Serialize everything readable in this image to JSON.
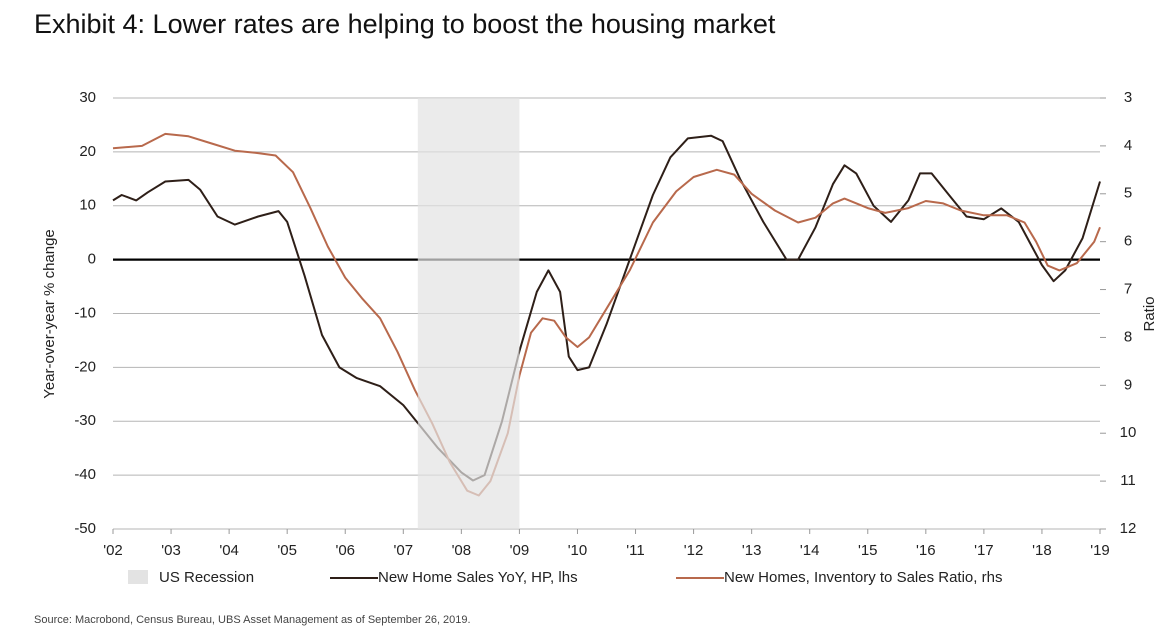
{
  "chart_data": {
    "type": "line",
    "title": "Exhibit 4: Lower rates are helping to boost the housing market",
    "ylabel": "Year-over-year % change",
    "y2label": "Ratio",
    "source": "Source: Macrobond, Census Bureau, UBS Asset Management as of September 26, 2019.",
    "xlim": [
      2002,
      2019
    ],
    "xticks": [
      {
        "value": 2002,
        "label": "'02"
      },
      {
        "value": 2003,
        "label": "'03"
      },
      {
        "value": 2004,
        "label": "'04"
      },
      {
        "value": 2005,
        "label": "'05"
      },
      {
        "value": 2006,
        "label": "'06"
      },
      {
        "value": 2007,
        "label": "'07"
      },
      {
        "value": 2008,
        "label": "'08"
      },
      {
        "value": 2009,
        "label": "'09"
      },
      {
        "value": 2010,
        "label": "'10"
      },
      {
        "value": 2011,
        "label": "'11"
      },
      {
        "value": 2012,
        "label": "'12"
      },
      {
        "value": 2013,
        "label": "'13"
      },
      {
        "value": 2014,
        "label": "'14"
      },
      {
        "value": 2015,
        "label": "'15"
      },
      {
        "value": 2016,
        "label": "'16"
      },
      {
        "value": 2017,
        "label": "'17"
      },
      {
        "value": 2018,
        "label": "'18"
      },
      {
        "value": 2019,
        "label": "'19"
      }
    ],
    "ylim": [
      -50,
      30
    ],
    "yticks": [
      -50,
      -40,
      -30,
      -20,
      -10,
      0,
      10,
      20,
      30
    ],
    "y2lim": [
      12,
      3
    ],
    "y2ticks": [
      3,
      4,
      5,
      6,
      7,
      8,
      9,
      10,
      11,
      12
    ],
    "grid": true,
    "recession": {
      "name": "US Recession",
      "color": "#e3e3e3",
      "range": [
        2007.25,
        2009.0
      ]
    },
    "series": [
      {
        "name": "New Home Sales YoY, HP, lhs",
        "color": "#2e1f18",
        "x": [
          2002.0,
          2002.15,
          2002.4,
          2002.6,
          2002.9,
          2003.3,
          2003.5,
          2003.8,
          2004.1,
          2004.5,
          2004.85,
          2005.0,
          2005.3,
          2005.6,
          2005.9,
          2006.2,
          2006.6,
          2007.0,
          2007.3,
          2007.6,
          2008.0,
          2008.2,
          2008.4,
          2008.7,
          2009.0,
          2009.3,
          2009.5,
          2009.7,
          2009.85,
          2010.0,
          2010.2,
          2010.5,
          2010.9,
          2011.3,
          2011.6,
          2011.9,
          2012.3,
          2012.5,
          2012.8,
          2013.2,
          2013.6,
          2013.8,
          2014.1,
          2014.4,
          2014.6,
          2014.8,
          2015.1,
          2015.4,
          2015.7,
          2015.9,
          2016.1,
          2016.4,
          2016.7,
          2017.0,
          2017.3,
          2017.6,
          2017.8,
          2018.0,
          2018.2,
          2018.4,
          2018.7,
          2019.0
        ],
        "values": [
          11,
          12,
          11,
          12.5,
          14.5,
          14.8,
          13,
          8,
          6.5,
          8,
          9,
          7,
          -3,
          -14,
          -20,
          -22,
          -23.5,
          -27,
          -31,
          -35,
          -39.5,
          -41,
          -40,
          -30,
          -17,
          -6,
          -2,
          -6,
          -18,
          -20.5,
          -20,
          -12,
          0,
          12,
          19,
          22.5,
          23,
          22,
          15,
          7,
          0,
          0,
          6,
          14,
          17.5,
          16,
          10,
          7,
          11,
          16,
          16,
          12,
          8,
          7.5,
          9.5,
          7,
          3,
          -1,
          -4,
          -2,
          4,
          14.5
        ]
      },
      {
        "name": "New Homes, Inventory to Sales Ratio, rhs",
        "color": "#b8694c",
        "axis": "y2",
        "x": [
          2002.0,
          2002.5,
          2002.9,
          2003.3,
          2003.7,
          2004.1,
          2004.5,
          2004.8,
          2005.1,
          2005.4,
          2005.7,
          2006.0,
          2006.3,
          2006.6,
          2006.9,
          2007.2,
          2007.5,
          2007.8,
          2008.1,
          2008.3,
          2008.5,
          2008.8,
          2009.0,
          2009.2,
          2009.4,
          2009.6,
          2009.8,
          2010.0,
          2010.2,
          2010.5,
          2010.9,
          2011.3,
          2011.7,
          2012.0,
          2012.4,
          2012.7,
          2013.0,
          2013.4,
          2013.8,
          2014.1,
          2014.4,
          2014.6,
          2015.0,
          2015.3,
          2015.7,
          2016.0,
          2016.3,
          2016.6,
          2017.0,
          2017.4,
          2017.7,
          2017.9,
          2018.1,
          2018.3,
          2018.6,
          2018.9,
          2019.0
        ],
        "values": [
          4.05,
          4.0,
          3.75,
          3.8,
          3.95,
          4.1,
          4.15,
          4.2,
          4.55,
          5.3,
          6.1,
          6.75,
          7.2,
          7.6,
          8.3,
          9.1,
          9.8,
          10.6,
          11.2,
          11.3,
          11.0,
          10.0,
          8.8,
          7.9,
          7.6,
          7.65,
          8.0,
          8.2,
          8.0,
          7.4,
          6.6,
          5.6,
          4.95,
          4.65,
          4.5,
          4.6,
          5.0,
          5.35,
          5.6,
          5.5,
          5.2,
          5.1,
          5.3,
          5.4,
          5.3,
          5.15,
          5.2,
          5.35,
          5.45,
          5.45,
          5.6,
          6.0,
          6.5,
          6.6,
          6.45,
          6.0,
          5.7
        ]
      }
    ]
  }
}
